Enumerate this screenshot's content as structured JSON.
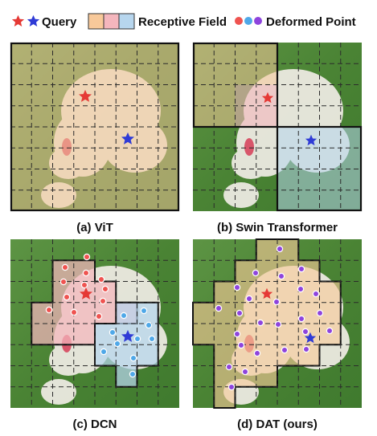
{
  "legend": {
    "query_label": "Query",
    "field_label": "Receptive Field",
    "deformed_label": "Deformed Point"
  },
  "panels": [
    {
      "id": "vit",
      "caption": "(a) ViT"
    },
    {
      "id": "swin",
      "caption": "(b) Swin Transformer"
    },
    {
      "id": "dcn",
      "caption": "(c) DCN"
    },
    {
      "id": "dat",
      "caption": "(d) DAT (ours)"
    }
  ],
  "colors": {
    "query_red": "#e53935",
    "query_blue": "#2f3bd6",
    "field_orange": "#f8c99a",
    "field_pink": "#f4b6bd",
    "field_blue": "#b7d6ee",
    "point_red": "#ef5350",
    "point_blue": "#4fa8e8",
    "point_purple": "#8e44dd",
    "grass": "#4f8a3a",
    "dog": "#f1ede6"
  }
}
